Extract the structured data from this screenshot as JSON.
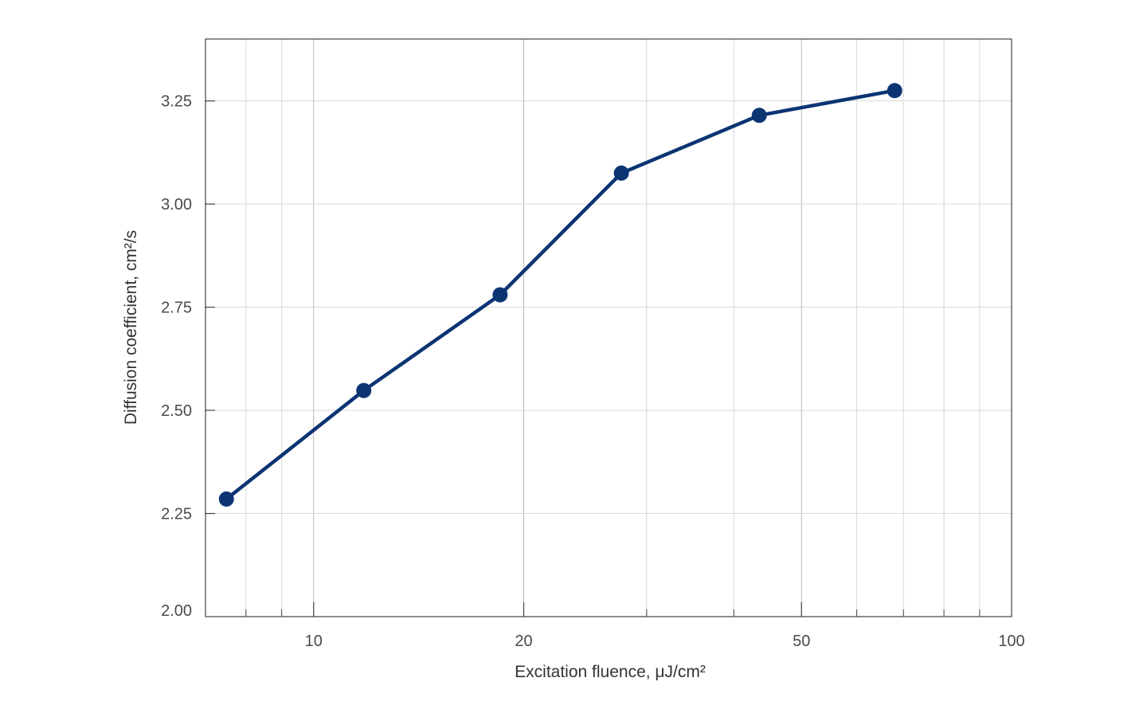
{
  "chart_data": {
    "type": "line",
    "title": "",
    "xlabel": "Excitation fluence, μJ/cm²",
    "ylabel": "Diffusion coefficient, cm²/s",
    "x_scale": "log",
    "xlim": [
      7,
      100
    ],
    "ylim": [
      2.0,
      3.4
    ],
    "x_ticks": [
      10,
      20,
      50,
      100
    ],
    "x_tick_labels": [
      "10",
      "20",
      "50",
      "100"
    ],
    "y_ticks": [
      2.0,
      2.25,
      2.5,
      2.75,
      3.0,
      3.25
    ],
    "y_tick_labels": [
      "2.00",
      "2.25",
      "2.50",
      "2.75",
      "3.00",
      "3.25"
    ],
    "grid": true,
    "series": [
      {
        "color": "#0b3473",
        "x": [
          7.5,
          11.8,
          18.5,
          27.6,
          43.5,
          68.0
        ],
        "y": [
          2.285,
          2.548,
          2.78,
          3.075,
          3.215,
          3.275
        ]
      }
    ]
  }
}
